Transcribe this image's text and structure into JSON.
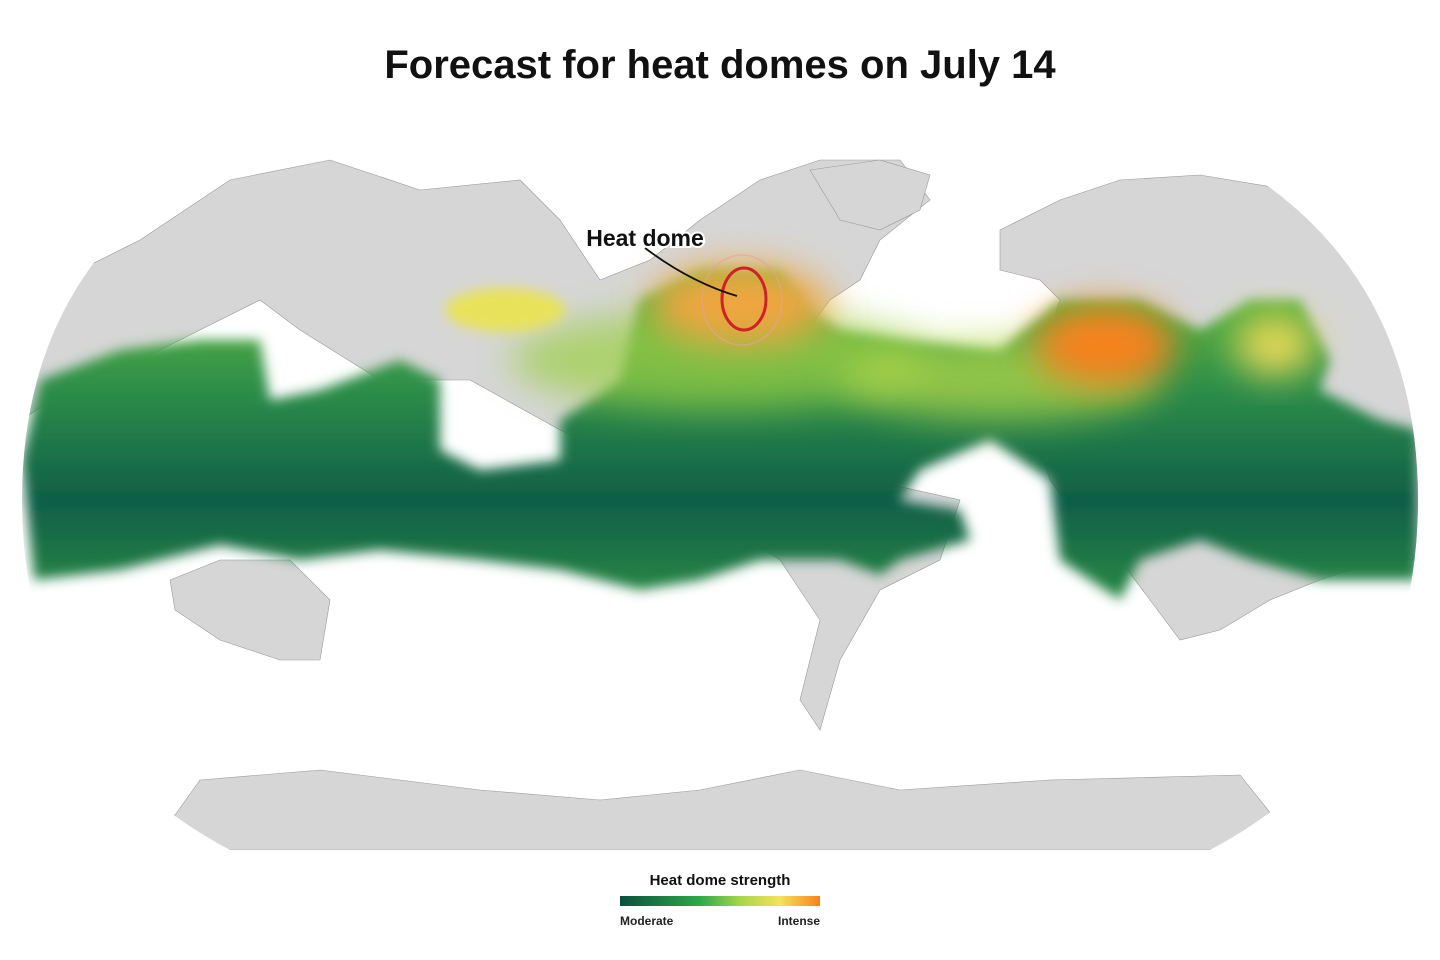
{
  "title": "Forecast for heat domes on July 14",
  "annotation": {
    "label": "Heat dome"
  },
  "legend": {
    "title": "Heat dome strength",
    "min_label": "Moderate",
    "max_label": "Intense"
  }
}
